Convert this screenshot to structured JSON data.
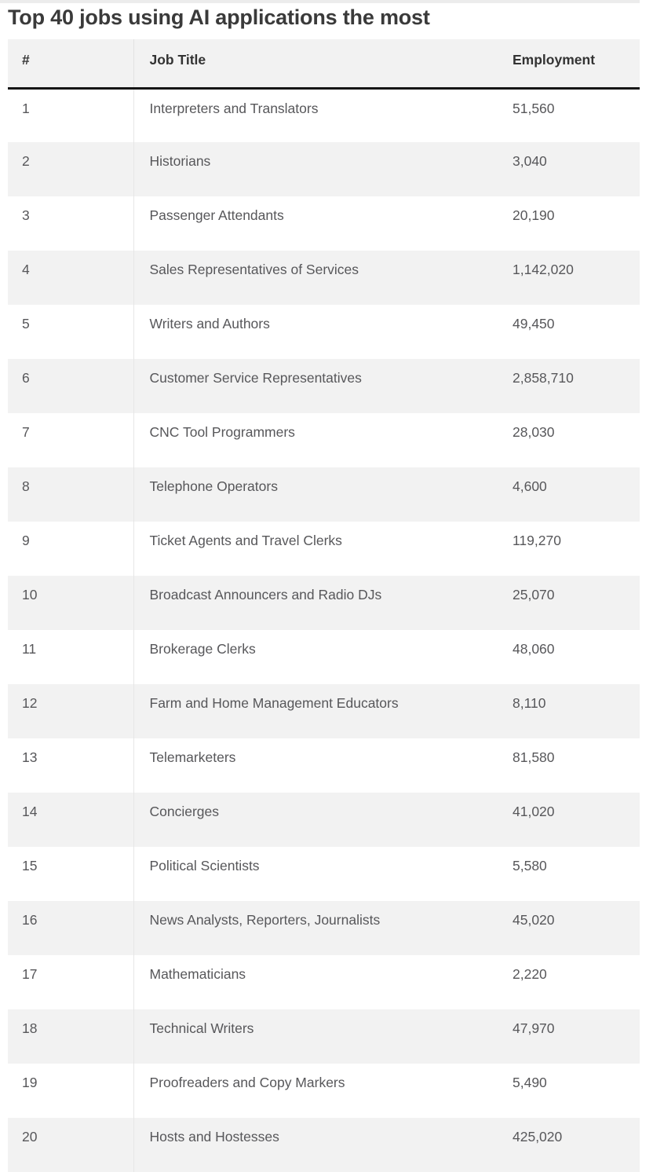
{
  "chart_data": {
    "type": "table",
    "title": "Top 40 jobs using AI applications the most",
    "columns": [
      "#",
      "Job Title",
      "Employment"
    ],
    "rows": [
      {
        "rank": "1",
        "job_title": "Interpreters and Translators",
        "employment": "51,560",
        "employment_value": 51560
      },
      {
        "rank": "2",
        "job_title": "Historians",
        "employment": "3,040",
        "employment_value": 3040
      },
      {
        "rank": "3",
        "job_title": "Passenger Attendants",
        "employment": "20,190",
        "employment_value": 20190
      },
      {
        "rank": "4",
        "job_title": "Sales Representatives of Services",
        "employment": "1,142,020",
        "employment_value": 1142020
      },
      {
        "rank": "5",
        "job_title": "Writers and Authors",
        "employment": "49,450",
        "employment_value": 49450
      },
      {
        "rank": "6",
        "job_title": "Customer Service Representatives",
        "employment": "2,858,710",
        "employment_value": 2858710
      },
      {
        "rank": "7",
        "job_title": "CNC Tool Programmers",
        "employment": "28,030",
        "employment_value": 28030
      },
      {
        "rank": "8",
        "job_title": "Telephone Operators",
        "employment": "4,600",
        "employment_value": 4600
      },
      {
        "rank": "9",
        "job_title": "Ticket Agents and Travel Clerks",
        "employment": "119,270",
        "employment_value": 119270
      },
      {
        "rank": "10",
        "job_title": "Broadcast Announcers and Radio DJs",
        "employment": "25,070",
        "employment_value": 25070
      },
      {
        "rank": "11",
        "job_title": "Brokerage Clerks",
        "employment": "48,060",
        "employment_value": 48060
      },
      {
        "rank": "12",
        "job_title": "Farm and Home Management Educators",
        "employment": "8,110",
        "employment_value": 8110
      },
      {
        "rank": "13",
        "job_title": "Telemarketers",
        "employment": "81,580",
        "employment_value": 81580
      },
      {
        "rank": "14",
        "job_title": "Concierges",
        "employment": "41,020",
        "employment_value": 41020
      },
      {
        "rank": "15",
        "job_title": "Political Scientists",
        "employment": "5,580",
        "employment_value": 5580
      },
      {
        "rank": "16",
        "job_title": "News Analysts, Reporters, Journalists",
        "employment": "45,020",
        "employment_value": 45020
      },
      {
        "rank": "17",
        "job_title": "Mathematicians",
        "employment": "2,220",
        "employment_value": 2220
      },
      {
        "rank": "18",
        "job_title": "Technical Writers",
        "employment": "47,970",
        "employment_value": 47970
      },
      {
        "rank": "19",
        "job_title": "Proofreaders and Copy Markers",
        "employment": "5,490",
        "employment_value": 5490
      },
      {
        "rank": "20",
        "job_title": "Hosts and Hostesses",
        "employment": "425,020",
        "employment_value": 425020
      }
    ],
    "layout": {
      "visible_rows": 20,
      "striped": true,
      "stripe_pattern": "even rows shaded, header shaded, heavy rule under header",
      "column_alignment": [
        "left",
        "left",
        "left"
      ]
    }
  },
  "colors": {
    "page_background": "#ffffff",
    "row_stripe": "#f2f2f2",
    "header_background": "#f2f2f2",
    "header_rule": "#161616",
    "title_text": "#3a3a3a",
    "header_text": "#333333",
    "body_text": "#57575a",
    "column_divider": "#e4e4e4",
    "top_strip": "#ececec"
  }
}
